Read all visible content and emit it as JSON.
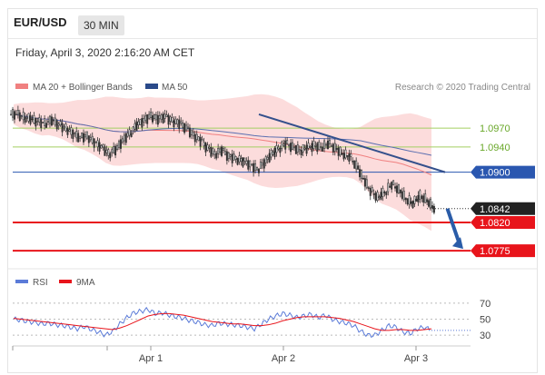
{
  "header": {
    "symbol": "EUR/USD",
    "timeframe": "30 MIN",
    "datetime": "Friday, April 3, 2020 2:16:20 AM CET"
  },
  "legend": {
    "ma20": "MA 20 + Bollinger Bands",
    "ma50": "MA 50",
    "credit": "Research © 2020 Trading Central"
  },
  "rsi_legend": {
    "rsi": "RSI",
    "ma9": "9MA"
  },
  "colors": {
    "candle": "#333333",
    "bollinger_fill": "#fbd6d6",
    "ma20": "#f08080",
    "ma50": "#5b6fb0",
    "trendline": "#34508c",
    "green_level": "#a3cf62",
    "blue_level": "#2a57b0",
    "red_level": "#e8141b",
    "arrow": "#2a5ca8",
    "rsi": "#5b7bd8",
    "rsi_ma": "#e8141b"
  },
  "chart_data": [
    {
      "type": "candlestick",
      "title": "",
      "x_tick_labels": [
        "Apr 1",
        "Apr 2",
        "Apr 3"
      ],
      "ylim": [
        1.0755,
        1.1015
      ],
      "levels": [
        {
          "value": 1.097,
          "label": "1.0970",
          "kind": "green"
        },
        {
          "value": 1.094,
          "label": "1.0940",
          "kind": "green"
        },
        {
          "value": 1.09,
          "label": "1.0900",
          "kind": "blue"
        },
        {
          "value": 1.082,
          "label": "1.0820",
          "kind": "red"
        },
        {
          "value": 1.0775,
          "label": "1.0775",
          "kind": "red"
        }
      ],
      "last_price": {
        "value": 1.0842,
        "label": "1.0842"
      },
      "price_series": [
        1.0992,
        1.0988,
        1.0985,
        1.098,
        1.0978,
        1.0983,
        1.0975,
        1.097,
        1.0962,
        1.0955,
        1.0958,
        1.0948,
        1.094,
        1.093,
        1.0936,
        1.095,
        1.0962,
        1.0975,
        1.0982,
        1.099,
        1.0985,
        1.0988,
        1.0982,
        1.0978,
        1.097,
        1.096,
        1.095,
        1.0938,
        1.093,
        1.0935,
        1.0925,
        1.0922,
        1.0918,
        1.0912,
        1.0905,
        1.0915,
        1.0928,
        1.0938,
        1.0945,
        1.094,
        1.0935,
        1.0938,
        1.0942,
        1.094,
        1.0945,
        1.0938,
        1.093,
        1.0925,
        1.091,
        1.089,
        1.087,
        1.086,
        1.0868,
        1.088,
        1.0872,
        1.0858,
        1.085,
        1.0862,
        1.0855,
        1.0842
      ],
      "trendline": [
        [
          0.54,
          1.0992
        ],
        [
          0.95,
          1.09
        ]
      ],
      "forecast_arrow": [
        [
          0.955,
          1.0842
        ],
        [
          0.99,
          1.0778
        ]
      ]
    },
    {
      "type": "line",
      "title": "",
      "ylim": [
        20,
        80
      ],
      "y_tick_labels": [
        "70",
        "50",
        "30"
      ],
      "y_ticks": [
        70,
        50,
        30
      ],
      "series": [
        {
          "name": "RSI",
          "values": [
            50,
            49,
            47,
            46,
            44,
            45,
            43,
            42,
            40,
            38,
            41,
            37,
            34,
            30,
            35,
            44,
            52,
            58,
            60,
            62,
            57,
            58,
            55,
            53,
            51,
            48,
            46,
            43,
            42,
            45,
            44,
            43,
            42,
            40,
            38,
            44,
            50,
            54,
            57,
            55,
            52,
            54,
            56,
            52,
            55,
            50,
            47,
            45,
            42,
            35,
            30,
            30,
            36,
            42,
            40,
            34,
            32,
            38,
            40,
            36
          ]
        },
        {
          "name": "9MA",
          "values": [
            51,
            50,
            49,
            48,
            47,
            46,
            45,
            44,
            43,
            42,
            41,
            40,
            39,
            38,
            37,
            39,
            42,
            46,
            50,
            54,
            56,
            57,
            57,
            56,
            55,
            53,
            51,
            49,
            47,
            46,
            45,
            44,
            44,
            43,
            42,
            42,
            43,
            45,
            48,
            50,
            52,
            53,
            53,
            53,
            53,
            52,
            51,
            49,
            47,
            44,
            41,
            38,
            36,
            36,
            37,
            37,
            36,
            36,
            37,
            38
          ]
        }
      ]
    }
  ]
}
